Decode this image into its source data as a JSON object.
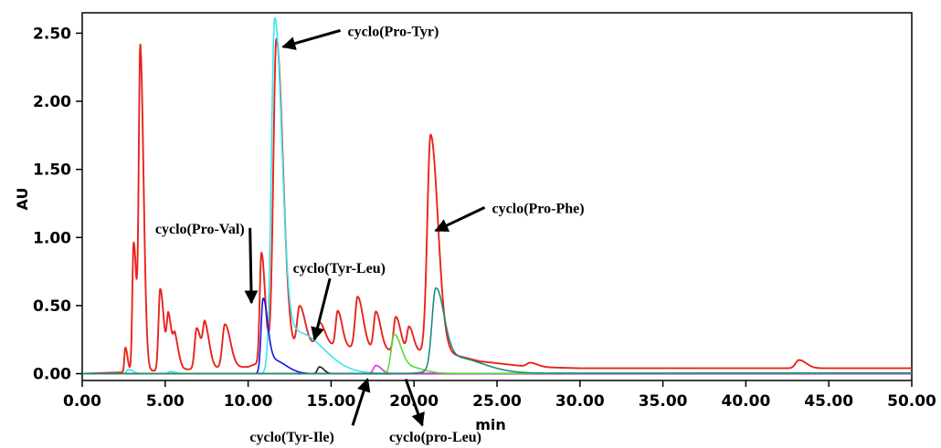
{
  "chart_data": {
    "type": "line",
    "title": "",
    "xlabel": "min",
    "ylabel": "AU",
    "xlim": [
      0,
      50
    ],
    "ylim": [
      -0.05,
      2.65
    ],
    "x_ticks": [
      0,
      5,
      10,
      15,
      20,
      25,
      30,
      35,
      40,
      45,
      50
    ],
    "x_tick_labels": [
      "0.00",
      "5.00",
      "10.00",
      "15.00",
      "20.00",
      "25.00",
      "30.00",
      "35.00",
      "40.00",
      "45.00",
      "50.00"
    ],
    "y_ticks": [
      0,
      0.5,
      1.0,
      1.5,
      2.0,
      2.5
    ],
    "y_tick_labels": [
      "0.00",
      "0.50",
      "1.00",
      "1.50",
      "2.00",
      "2.50"
    ],
    "grid": false,
    "series": [
      {
        "color": "#e8241c",
        "baseline": [
          [
            0,
            0
          ],
          [
            2.4,
            0.01
          ],
          [
            6,
            0.03
          ],
          [
            10,
            0.05
          ],
          [
            11.5,
            0.12
          ],
          [
            14,
            0.22
          ],
          [
            17,
            0.18
          ],
          [
            20,
            0.16
          ],
          [
            22,
            0.15
          ],
          [
            24,
            0.09
          ],
          [
            27,
            0.05
          ],
          [
            30,
            0.04
          ],
          [
            40,
            0.04
          ],
          [
            50,
            0.04
          ]
        ],
        "peaks": [
          {
            "x": 2.6,
            "h": 0.18,
            "w": 0.06
          },
          {
            "x": 3.1,
            "h": 0.95,
            "w": 0.08
          },
          {
            "x": 3.5,
            "h": 2.33,
            "w": 0.09
          },
          {
            "x": 4.7,
            "h": 0.6,
            "w": 0.1
          },
          {
            "x": 5.2,
            "h": 0.38,
            "w": 0.1
          },
          {
            "x": 5.6,
            "h": 0.2,
            "w": 0.1
          },
          {
            "x": 6.9,
            "h": 0.3,
            "w": 0.12
          },
          {
            "x": 7.4,
            "h": 0.3,
            "w": 0.12
          },
          {
            "x": 8.6,
            "h": 0.32,
            "w": 0.15
          },
          {
            "x": 10.8,
            "h": 0.8,
            "w": 0.1
          },
          {
            "x": 11.7,
            "h": 2.33,
            "w": 0.18
          },
          {
            "x": 13.1,
            "h": 0.31,
            "w": 0.15
          },
          {
            "x": 14.3,
            "h": 0.16,
            "w": 0.15
          },
          {
            "x": 15.4,
            "h": 0.26,
            "w": 0.12
          },
          {
            "x": 16.6,
            "h": 0.38,
            "w": 0.15
          },
          {
            "x": 17.7,
            "h": 0.28,
            "w": 0.13
          },
          {
            "x": 18.9,
            "h": 0.25,
            "w": 0.13
          },
          {
            "x": 19.7,
            "h": 0.18,
            "w": 0.12
          },
          {
            "x": 21.0,
            "h": 1.6,
            "w": 0.2
          },
          {
            "x": 27.0,
            "h": 0.03,
            "w": 0.2
          },
          {
            "x": 43.2,
            "h": 0.06,
            "w": 0.2
          }
        ]
      },
      {
        "color": "#35e6ee",
        "baseline": [
          [
            0,
            0
          ],
          [
            50,
            0.005
          ]
        ],
        "peaks": [
          {
            "x": 2.8,
            "h": 0.03,
            "w": 0.12
          },
          {
            "x": 5.3,
            "h": 0.015,
            "w": 0.12
          },
          {
            "x": 11.6,
            "h": 2.57,
            "w": 0.2
          },
          {
            "x": 13.0,
            "h": 0.3,
            "w": 0.7
          }
        ]
      },
      {
        "color": "#1414e6",
        "baseline": [
          [
            0,
            0
          ],
          [
            50,
            0
          ]
        ],
        "peaks": [
          {
            "x": 10.9,
            "h": 0.53,
            "w": 0.12
          },
          {
            "x": 11.5,
            "h": 0.1,
            "w": 0.35
          }
        ]
      },
      {
        "color": "#1c1c1c",
        "baseline": [
          [
            0,
            0
          ],
          [
            50,
            0
          ]
        ],
        "peaks": [
          {
            "x": 14.3,
            "h": 0.05,
            "w": 0.12
          }
        ]
      },
      {
        "color": "#e02ee0",
        "baseline": [
          [
            0,
            0
          ],
          [
            50,
            0
          ]
        ],
        "peaks": [
          {
            "x": 17.7,
            "h": 0.06,
            "w": 0.15
          }
        ]
      },
      {
        "color": "#5dd836",
        "baseline": [
          [
            0,
            0
          ],
          [
            50,
            0.004
          ]
        ],
        "peaks": [
          {
            "x": 18.8,
            "h": 0.28,
            "w": 0.18
          },
          {
            "x": 19.6,
            "h": 0.05,
            "w": 0.4
          }
        ]
      },
      {
        "color": "#1f8a7a",
        "baseline": [
          [
            0,
            0
          ],
          [
            50,
            0.005
          ]
        ],
        "peaks": [
          {
            "x": 21.3,
            "h": 0.57,
            "w": 0.22
          },
          {
            "x": 22.3,
            "h": 0.12,
            "w": 0.8
          }
        ]
      }
    ],
    "annotations": [
      {
        "text": "cyclo(Pro-Tyr)",
        "x": 16,
        "y": 2.48,
        "arrow_to": [
          12.1,
          2.4
        ]
      },
      {
        "text": "cyclo(Pro-Val)",
        "x": 4.4,
        "y": 1.03,
        "arrow_to": [
          10.2,
          0.52
        ]
      },
      {
        "text": "cyclo(Tyr-Leu)",
        "x": 12.7,
        "y": 0.74,
        "arrow_to": [
          14.0,
          0.25
        ]
      },
      {
        "text": "cyclo(Pro-Phe)",
        "x": 24.7,
        "y": 1.18,
        "arrow_to": [
          21.3,
          1.05
        ]
      },
      {
        "text": "cyclo(Tyr-Ile)",
        "x": 10.1,
        "y": -0.5,
        "arrow_from": [
          16.3,
          -0.38
        ],
        "arrow_to": [
          17.2,
          -0.04
        ]
      },
      {
        "text": "cyclo(pro-Leu)",
        "x": 18.5,
        "y": -0.5,
        "arrow_from": [
          19.5,
          -0.04
        ],
        "arrow_to": [
          20.5,
          -0.38
        ]
      }
    ]
  }
}
